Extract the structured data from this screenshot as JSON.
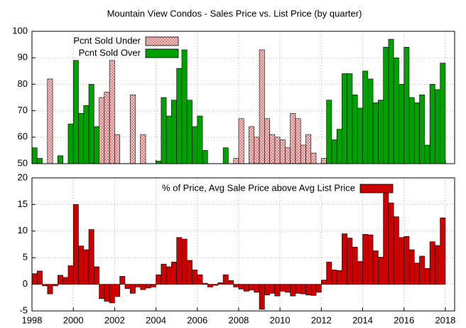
{
  "chart_data": [
    {
      "type": "bar",
      "title": "Mountain View Condos - Sales Price vs. List Price (by quarter)",
      "x": [
        1998,
        1998.25,
        1998.5,
        1998.75,
        1999,
        1999.25,
        1999.5,
        1999.75,
        2000,
        2000.25,
        2000.5,
        2000.75,
        2001,
        2001.25,
        2001.5,
        2001.75,
        2002,
        2002.25,
        2002.5,
        2002.75,
        2003,
        2003.25,
        2003.5,
        2003.75,
        2004,
        2004.25,
        2004.5,
        2004.75,
        2005,
        2005.25,
        2005.5,
        2005.75,
        2006,
        2006.25,
        2006.5,
        2006.75,
        2007,
        2007.25,
        2007.5,
        2007.75,
        2008,
        2008.25,
        2008.5,
        2008.75,
        2009,
        2009.25,
        2009.5,
        2009.75,
        2010,
        2010.25,
        2010.5,
        2010.75,
        2011,
        2011.25,
        2011.5,
        2011.75,
        2012,
        2012.25,
        2012.5,
        2012.75,
        2013,
        2013.25,
        2013.5,
        2013.75,
        2014,
        2014.25,
        2014.5,
        2014.75,
        2015,
        2015.25,
        2015.5,
        2015.75,
        2016,
        2016.25,
        2016.5,
        2016.75,
        2017,
        2017.25,
        2017.5,
        2017.75
      ],
      "series": [
        {
          "name": "Pcnt Sold Under",
          "color": "#f4c4c4",
          "pattern": "crosshatch",
          "values": [
            null,
            null,
            null,
            82,
            null,
            null,
            null,
            null,
            null,
            null,
            null,
            null,
            null,
            75,
            77,
            89,
            61,
            null,
            null,
            76,
            null,
            61,
            null,
            null,
            null,
            null,
            null,
            null,
            null,
            null,
            null,
            null,
            null,
            null,
            null,
            null,
            null,
            null,
            null,
            52,
            67,
            null,
            64,
            60,
            93,
            67,
            61,
            60,
            59,
            56,
            69,
            67,
            57,
            61,
            54,
            null,
            52,
            null,
            null,
            null,
            null,
            null,
            null,
            null,
            null,
            null,
            null,
            null,
            null,
            null,
            null,
            null,
            null,
            null,
            null,
            null,
            null,
            null,
            null,
            null
          ]
        },
        {
          "name": "Pcnt Sold Over",
          "color": "#00a000",
          "values": [
            56,
            52,
            null,
            null,
            null,
            53,
            null,
            65,
            89,
            69,
            72,
            80,
            64,
            null,
            null,
            null,
            null,
            null,
            null,
            null,
            null,
            null,
            null,
            null,
            51,
            75,
            68,
            74,
            86,
            93,
            74,
            64,
            68,
            55,
            null,
            null,
            null,
            56,
            null,
            null,
            null,
            null,
            null,
            null,
            null,
            null,
            null,
            null,
            null,
            null,
            null,
            null,
            null,
            null,
            null,
            null,
            null,
            74,
            59,
            63,
            84,
            84,
            76,
            71,
            85,
            82,
            73,
            74,
            94,
            97,
            90,
            80,
            94,
            75,
            73,
            76,
            57,
            80,
            78,
            88
          ]
        }
      ],
      "xlim": [
        1998,
        2018.45
      ],
      "xticks": [
        1998,
        2000,
        2002,
        2004,
        2006,
        2008,
        2010,
        2012,
        2014,
        2016,
        2018
      ],
      "ylim": [
        50,
        100
      ],
      "yticks": [
        50,
        60,
        70,
        80,
        90,
        100
      ],
      "grid": true
    },
    {
      "type": "bar",
      "x": [
        1998,
        1998.25,
        1998.5,
        1998.75,
        1999,
        1999.25,
        1999.5,
        1999.75,
        2000,
        2000.25,
        2000.5,
        2000.75,
        2001,
        2001.25,
        2001.5,
        2001.75,
        2002,
        2002.25,
        2002.5,
        2002.75,
        2003,
        2003.25,
        2003.5,
        2003.75,
        2004,
        2004.25,
        2004.5,
        2004.75,
        2005,
        2005.25,
        2005.5,
        2005.75,
        2006,
        2006.25,
        2006.5,
        2006.75,
        2007,
        2007.25,
        2007.5,
        2007.75,
        2008,
        2008.25,
        2008.5,
        2008.75,
        2009,
        2009.25,
        2009.5,
        2009.75,
        2010,
        2010.25,
        2010.5,
        2010.75,
        2011,
        2011.25,
        2011.5,
        2011.75,
        2012,
        2012.25,
        2012.5,
        2012.75,
        2013,
        2013.25,
        2013.5,
        2013.75,
        2014,
        2014.25,
        2014.5,
        2014.75,
        2015,
        2015.25,
        2015.5,
        2015.75,
        2016,
        2016.25,
        2016.5,
        2016.75,
        2017,
        2017.25,
        2017.5,
        2017.75
      ],
      "series": [
        {
          "name": "% of Price, Avg Sale Price above Avg List Price",
          "color": "#cc0000",
          "values": [
            2.0,
            2.5,
            -0.3,
            -1.8,
            -0.3,
            1.7,
            1.3,
            3.5,
            15,
            7.2,
            6.5,
            10.3,
            3.3,
            -2.7,
            -3.2,
            -3.5,
            -2.3,
            1.5,
            -0.8,
            -1.7,
            -0.5,
            -1.0,
            -0.7,
            -0.5,
            1.8,
            3.8,
            3.3,
            4.2,
            8.8,
            8.5,
            4.5,
            2.7,
            1.8,
            0.2,
            -0.5,
            -0.2,
            0.3,
            1.8,
            0.7,
            -0.5,
            -0.9,
            -1.3,
            -1.1,
            -1.5,
            -4.7,
            -2.0,
            -1.7,
            -2.2,
            -1.3,
            -1.5,
            -2.2,
            -1.7,
            -1.8,
            -2.0,
            -2.1,
            -1.5,
            0.8,
            4.2,
            2.7,
            2.6,
            9.5,
            8.7,
            7.0,
            4.3,
            9.4,
            9.3,
            6.3,
            5.1,
            18.5,
            15.3,
            12.7,
            8.8,
            9.0,
            6.5,
            4.0,
            5.3,
            3.0,
            8.0,
            7.3,
            12.5
          ]
        }
      ],
      "xlim": [
        1998,
        2018.45
      ],
      "xticks": [
        1998,
        2000,
        2002,
        2004,
        2006,
        2008,
        2010,
        2012,
        2014,
        2016,
        2018
      ],
      "ylim": [
        -5,
        20
      ],
      "yticks": [
        -5,
        0,
        5,
        10,
        15,
        20
      ],
      "grid": true
    }
  ]
}
